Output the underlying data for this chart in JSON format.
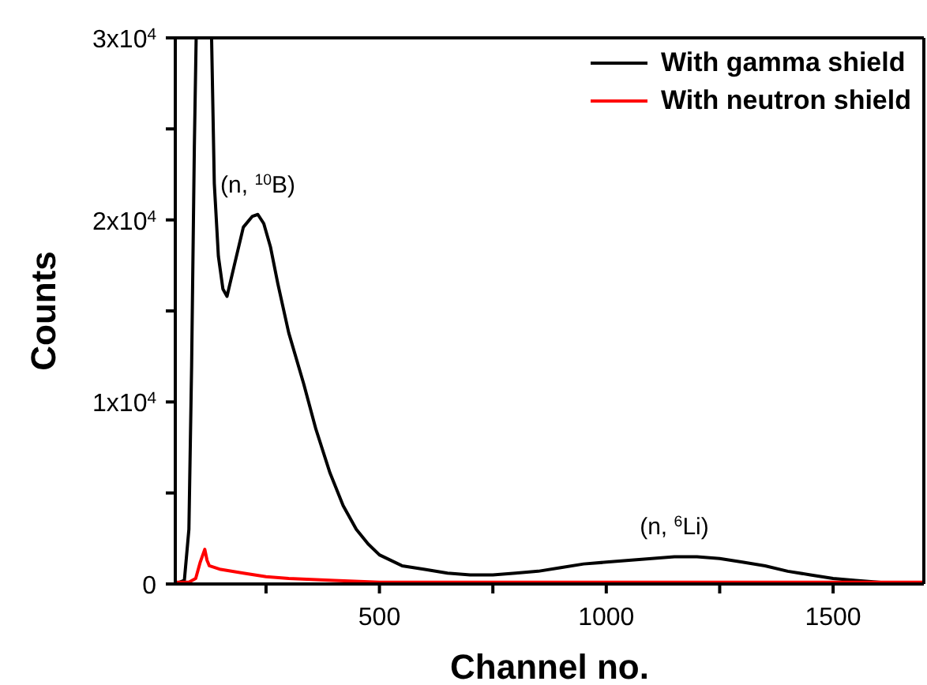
{
  "chart_data": {
    "type": "line",
    "xlabel": "Channel no.",
    "ylabel": "Counts",
    "xlim": [
      50,
      1700
    ],
    "ylim": [
      0,
      30000
    ],
    "xticks": [
      {
        "value": 250,
        "label": null
      },
      500,
      {
        "value": 750,
        "label": null
      },
      1000,
      {
        "value": 1250,
        "label": null
      },
      1500
    ],
    "yticks": [
      0,
      {
        "value": 5000,
        "label": null
      },
      {
        "value": 10000,
        "label": "1x10$^{4}$"
      },
      {
        "value": 15000,
        "label": null
      },
      {
        "value": 20000,
        "label": "2x10$^{4}$"
      },
      {
        "value": 25000,
        "label": null
      },
      {
        "value": 30000,
        "label": "3x10$^{4}$"
      }
    ],
    "grid": false,
    "legend": "top right",
    "marker": "none",
    "line_style": "solid",
    "annotations": [
      {
        "text": "(n, $^{10}$B)",
        "x": 232,
        "y": 20300
      },
      {
        "text": "(n, $^{6}$Li)",
        "x": 1150,
        "y": 1500
      }
    ],
    "series": [
      {
        "name": "With gamma shield",
        "color": "#000000",
        "x": [
          50,
          70,
          80,
          86,
          92,
          96,
          130,
          136,
          145,
          155,
          164,
          180,
          200,
          220,
          232,
          245,
          260,
          276,
          300,
          333,
          360,
          391,
          420,
          449,
          475,
          500,
          550,
          600,
          650,
          700,
          750,
          800,
          850,
          900,
          950,
          1000,
          1050,
          1100,
          1150,
          1200,
          1250,
          1300,
          1350,
          1400,
          1450,
          1500,
          1550,
          1600,
          1650,
          1700
        ],
        "values": [
          0,
          200,
          3000,
          12000,
          24000,
          30000,
          30000,
          22000,
          18000,
          16200,
          15800,
          17500,
          19600,
          20200,
          20300,
          19800,
          18500,
          16500,
          13800,
          11000,
          8500,
          6100,
          4300,
          3000,
          2200,
          1600,
          1000,
          800,
          600,
          500,
          500,
          600,
          700,
          900,
          1100,
          1200,
          1300,
          1400,
          1500,
          1500,
          1400,
          1200,
          1000,
          700,
          500,
          300,
          200,
          100,
          0,
          0
        ]
      },
      {
        "name": "With neutron shield",
        "color": "#ff0000",
        "x": [
          50,
          80,
          95,
          105,
          115,
          120,
          125,
          150,
          200,
          250,
          300,
          400,
          500,
          700,
          1000,
          1300,
          1700
        ],
        "values": [
          100,
          100,
          300,
          1200,
          1900,
          1300,
          1000,
          800,
          600,
          400,
          300,
          200,
          100,
          100,
          100,
          100,
          100
        ]
      }
    ]
  }
}
